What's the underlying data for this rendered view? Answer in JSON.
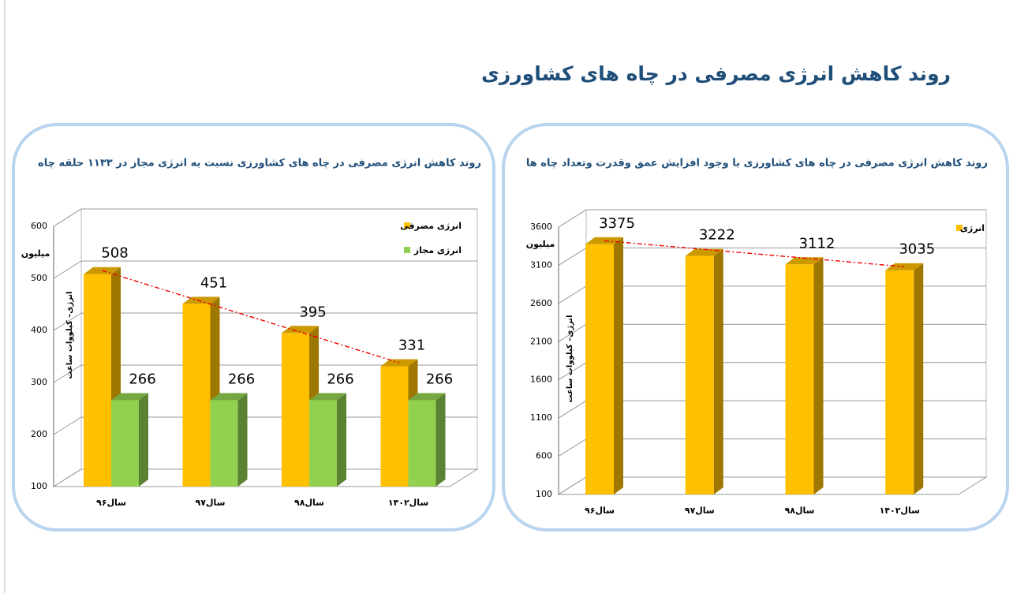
{
  "title": "روند کاهش انرژی مصرفی در چاه های کشاورزی",
  "chart_data": [
    {
      "type": "bar3d",
      "title": "روند کاهش انرژی مصرفی در چاه های کشاورزی نسبت به انرژی مجاز در ۱۱۳۳ حلقه چاه",
      "y_label": "انرژی– کیلووات ساعت",
      "y_unit": "میلیون",
      "categories": [
        "سال۹۶",
        "سال۹۷",
        "سال۹۸",
        "سال۱۴۰۲"
      ],
      "series": [
        {
          "name": "انرژی مصرفی",
          "color": "#ffc000",
          "values": [
            508,
            451,
            395,
            331
          ],
          "trendline": true
        },
        {
          "name": "انرژی مجاز",
          "color": "#92d050",
          "values": [
            266,
            266,
            266,
            266
          ]
        }
      ],
      "ylim": [
        100,
        600
      ],
      "yticks": [
        100,
        200,
        300,
        400,
        500,
        600
      ],
      "grid": true
    },
    {
      "type": "bar3d",
      "title": "روند کاهش انرژی مصرفی در چاه های کشاورزی با وجود افزایش عمق وقدرت وتعداد چاه ها",
      "y_label": "انرژی– کیلووات ساعت",
      "y_unit": "میلیون",
      "categories": [
        "سال۹۶",
        "سال۹۷",
        "سال۹۸",
        "سال۱۴۰۲"
      ],
      "series": [
        {
          "name": "انرژی",
          "color": "#ffc000",
          "values": [
            3375,
            3222,
            3112,
            3035
          ],
          "trendline": true
        }
      ],
      "ylim": [
        100,
        3600
      ],
      "yticks": [
        100,
        600,
        1100,
        1600,
        2100,
        2600,
        3100,
        3600
      ],
      "grid": true
    }
  ]
}
